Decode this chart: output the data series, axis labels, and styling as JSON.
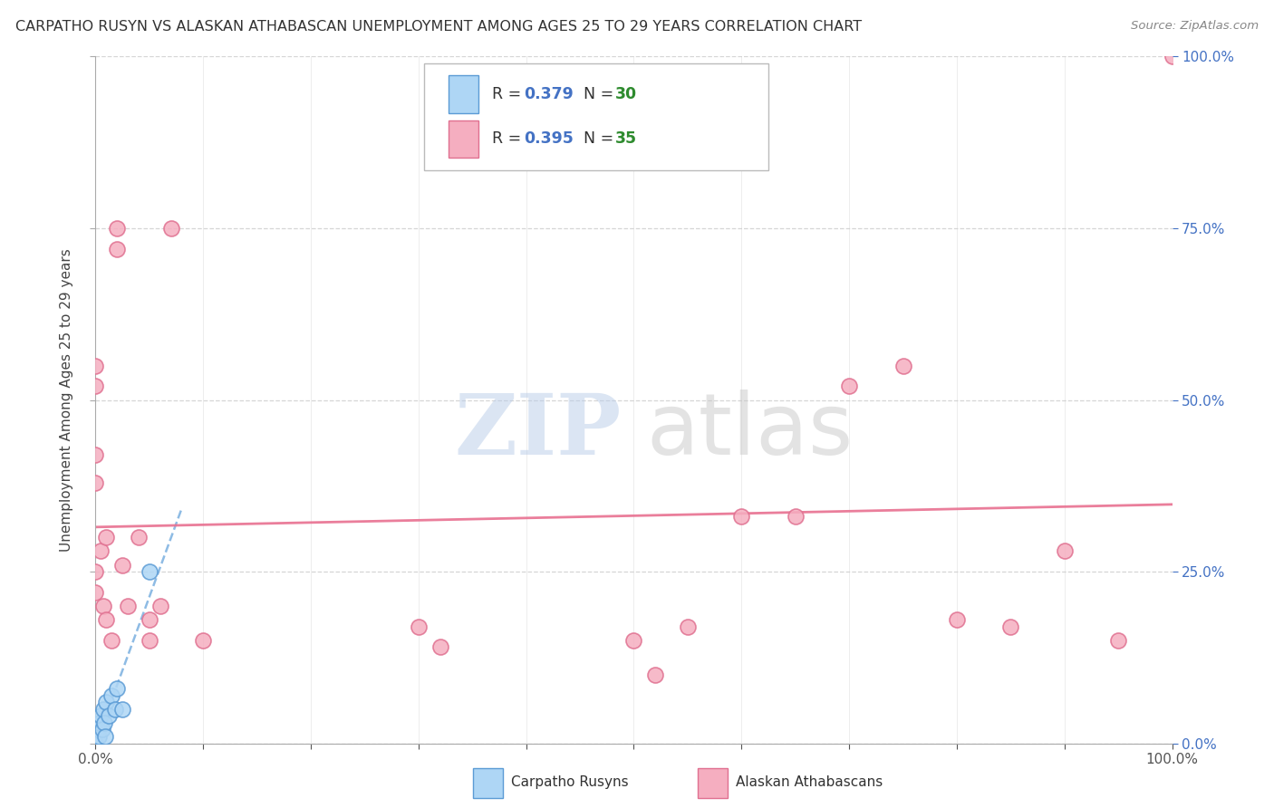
{
  "title": "CARPATHO RUSYN VS ALASKAN ATHABASCAN UNEMPLOYMENT AMONG AGES 25 TO 29 YEARS CORRELATION CHART",
  "source": "Source: ZipAtlas.com",
  "ylabel": "Unemployment Among Ages 25 to 29 years",
  "carpatho_color": "#aed6f5",
  "carpatho_edge_color": "#5b9bd5",
  "alaskan_color": "#f5aec0",
  "alaskan_edge_color": "#e07090",
  "carpatho_line_color": "#7ab0e0",
  "alaskan_line_color": "#e87090",
  "legend_carpatho_label": "Carpatho Rusyns",
  "legend_alaskan_label": "Alaskan Athabascans",
  "R_color": "#4472c4",
  "N_color": "#2e8b2e",
  "background_color": "#ffffff",
  "grid_color": "#cccccc",
  "right_axis_color": "#4472c4",
  "carpatho_scatter_x": [
    0.0,
    0.0,
    0.0,
    0.0,
    0.0,
    0.0,
    0.0,
    0.0,
    0.0,
    0.0,
    0.0,
    0.0,
    0.0,
    0.0,
    0.0,
    0.002,
    0.003,
    0.004,
    0.005,
    0.006,
    0.007,
    0.008,
    0.009,
    0.01,
    0.012,
    0.015,
    0.018,
    0.02,
    0.025,
    0.05
  ],
  "carpatho_scatter_y": [
    0.0,
    0.0,
    0.0,
    0.0,
    0.0,
    0.0,
    0.0,
    0.0,
    0.0,
    0.0,
    0.0,
    0.0,
    0.0,
    0.0,
    0.0,
    0.02,
    0.01,
    0.03,
    0.04,
    0.02,
    0.05,
    0.03,
    0.01,
    0.06,
    0.04,
    0.07,
    0.05,
    0.08,
    0.05,
    0.25
  ],
  "alaskan_scatter_x": [
    0.0,
    0.0,
    0.0,
    0.0,
    0.0,
    0.0,
    0.005,
    0.007,
    0.01,
    0.01,
    0.015,
    0.02,
    0.02,
    0.025,
    0.03,
    0.04,
    0.05,
    0.05,
    0.06,
    0.07,
    0.1,
    0.3,
    0.32,
    0.5,
    0.52,
    0.55,
    0.6,
    0.65,
    0.7,
    0.75,
    0.8,
    0.85,
    0.9,
    0.95,
    1.0
  ],
  "alaskan_scatter_y": [
    0.55,
    0.52,
    0.42,
    0.38,
    0.25,
    0.22,
    0.28,
    0.2,
    0.3,
    0.18,
    0.15,
    0.75,
    0.72,
    0.26,
    0.2,
    0.3,
    0.18,
    0.15,
    0.2,
    0.75,
    0.15,
    0.17,
    0.14,
    0.15,
    0.1,
    0.17,
    0.33,
    0.33,
    0.52,
    0.55,
    0.18,
    0.17,
    0.28,
    0.15,
    1.0
  ],
  "xlim": [
    0.0,
    1.0
  ],
  "ylim": [
    0.0,
    1.0
  ],
  "yticks": [
    0.0,
    0.25,
    0.5,
    0.75,
    1.0
  ],
  "ytick_labels": [
    "0.0%",
    "25.0%",
    "50.0%",
    "75.0%",
    "100.0%"
  ],
  "xtick_left": 0.0,
  "xtick_right": 1.0,
  "xtick_label_left": "0.0%",
  "xtick_label_right": "100.0%"
}
